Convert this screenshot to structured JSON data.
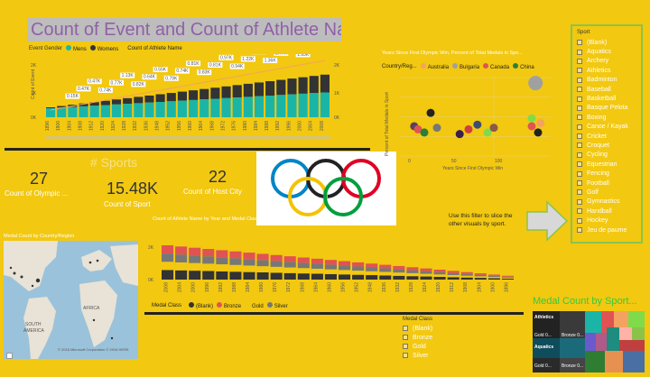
{
  "title": "Count of Event and Count of Athlete Na...",
  "legend_top": {
    "gender_label": "Event Gender",
    "mens": "Mens",
    "womens": "Womens",
    "athlete_label": "Count of Athlete Name"
  },
  "combo_chart": {
    "ylabel": "Count of Event",
    "y_ticks_left": [
      "0K",
      "1K",
      "2K"
    ],
    "y_ticks_right": [
      "0K",
      "1K",
      "2K"
    ],
    "categories": [
      "1896",
      "1900",
      "1904",
      "1908",
      "1912",
      "1920",
      "1924",
      "1928",
      "1932",
      "1936",
      "1948",
      "1952",
      "1956",
      "1960",
      "1964",
      "1968",
      "1972",
      "1976",
      "1980",
      "1984",
      "1988",
      "1992",
      "1996",
      "2000",
      "2004",
      "2008"
    ],
    "data_labels": [
      "0.15K",
      "0.47K",
      "0.47K",
      "0.74K",
      "0.77K",
      "1.13K",
      "0.82K",
      "0.64K",
      "0.55K",
      "0.79K",
      "0.74K",
      "0.81K",
      "0.83K",
      "0.81K",
      "0.97K",
      "0.94K",
      "1.22K",
      "1.28K",
      "1.36K",
      "1.47K",
      "1.63K",
      "1.93K",
      "1.98K"
    ]
  },
  "kpis": {
    "section_title": "# Sports",
    "olympic_count": "27",
    "olympic_label": "Count of Olympic ...",
    "sport_count": "15.48K",
    "sport_label": "Count of Sport",
    "host_count": "22",
    "host_label": "Count of Host City"
  },
  "scatter": {
    "title": "Years Since First Olympic Win, Percent of Total Medals in Spo...",
    "legend_label": "Country/Reg...",
    "countries": [
      "Australia",
      "Bulgaria",
      "Canada",
      "China"
    ],
    "country_colors": [
      "#F4A261",
      "#A0A0A0",
      "#E05353",
      "#2E7D32"
    ],
    "xlabel": "Years Since First Olympic Win",
    "ylabel": "Percent of Total Medals in Sport",
    "x_ticks": [
      "0",
      "50",
      "100"
    ],
    "points": [
      {
        "x": 12,
        "y": 0.38,
        "c": "#5A4060"
      },
      {
        "x": 15,
        "y": 0.34,
        "c": "#E05353"
      },
      {
        "x": 20,
        "y": 0.3,
        "c": "#2E7D32"
      },
      {
        "x": 25,
        "y": 0.55,
        "c": "#222222"
      },
      {
        "x": 30,
        "y": 0.36,
        "c": "#777777"
      },
      {
        "x": 48,
        "y": 0.28,
        "c": "#3A2050"
      },
      {
        "x": 55,
        "y": 0.34,
        "c": "#D04040"
      },
      {
        "x": 62,
        "y": 0.4,
        "c": "#3B4E6E"
      },
      {
        "x": 70,
        "y": 0.3,
        "c": "#7FDB4A"
      },
      {
        "x": 75,
        "y": 0.36,
        "c": "#8A5A4A"
      },
      {
        "x": 105,
        "y": 0.48,
        "c": "#7FDB4A"
      },
      {
        "x": 105,
        "y": 0.38,
        "c": "#E05353"
      },
      {
        "x": 110,
        "y": 0.3,
        "c": "#222222"
      },
      {
        "x": 112,
        "y": 0.42,
        "c": "#F4A261"
      },
      {
        "x": 108,
        "y": 0.93,
        "c": "#A0A0A0"
      }
    ]
  },
  "slicer": {
    "title": "Sport",
    "items": [
      "(Blank)",
      "Aquatics",
      "Archery",
      "Athletics",
      "Badminton",
      "Baseball",
      "Basketball",
      "Basque Pelota",
      "Boxing",
      "Canoe / Kayak",
      "Cricket",
      "Croquet",
      "Cycling",
      "Equestrian",
      "Fencing",
      "Football",
      "Golf",
      "Gymnastics",
      "Handball",
      "Hockey",
      "Jeu de paume"
    ]
  },
  "hint_text": "Use this filter to slice the other visuals by sport.",
  "map": {
    "title": "Medal Count by Country/Region",
    "labels": [
      "AFRICA",
      "SOUTH",
      "AMERICA"
    ],
    "copyright": "© 2016 Microsoft Corporation   © 2016 HERE"
  },
  "medal_chart": {
    "title": "Count of Athlete Name by Year and Medal Class",
    "y_ticks": [
      "0K",
      "2K"
    ],
    "categories": [
      "2008",
      "2004",
      "2000",
      "1996",
      "1992",
      "1988",
      "1984",
      "1980",
      "1976",
      "1972",
      "1968",
      "1964",
      "1960",
      "1956",
      "1952",
      "1948",
      "1936",
      "1932",
      "1928",
      "1924",
      "1920",
      "1912",
      "1908",
      "1904",
      "1900",
      "1896"
    ],
    "legend_label": "Medal Class",
    "classes": [
      "(Blank)",
      "Bronze",
      "Gold",
      "Silver"
    ],
    "class_colors": [
      "#333333",
      "#E05353",
      "#F2C811",
      "#777777"
    ]
  },
  "medal_slicer": {
    "title": "Medal Class",
    "items": [
      "(Blank)",
      "Bronze",
      "Gold",
      "Silver"
    ]
  },
  "treemap": {
    "title": "Medal Count by Sport...",
    "labels": [
      "Athletics",
      "Aquatics",
      "Gold 0...",
      "Bronze 0...",
      "Gold 0...",
      "Bronze 0..."
    ]
  }
}
